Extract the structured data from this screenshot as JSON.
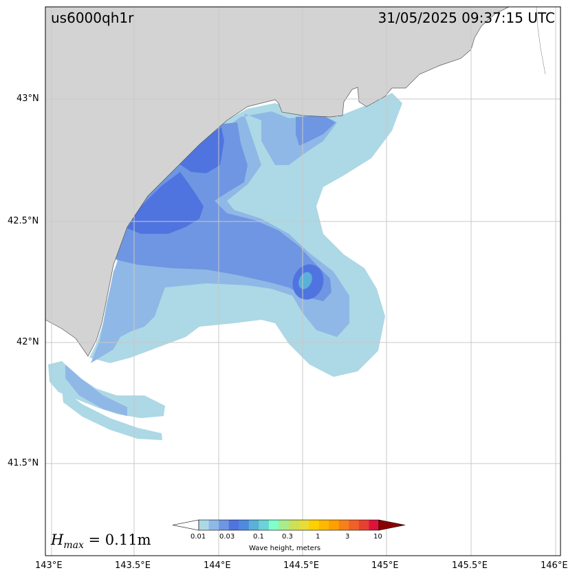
{
  "event_id": "us6000qh1r",
  "timestamp": "31/05/2025 09:37:15 UTC",
  "hmax_label": "H",
  "hmax_sub": "max",
  "hmax_value": " = 0.11m",
  "axes": {
    "x_ticks": [
      "143°E",
      "143.5°E",
      "144°E",
      "144.5°E",
      "145°E",
      "145.5°E",
      "146°E"
    ],
    "y_ticks": [
      "43°N",
      "42.5°N",
      "42°N",
      "41.5°N"
    ]
  },
  "colorbar": {
    "title": "Wave height, meters",
    "tick_labels": [
      "0.01",
      "0.03",
      "0.1",
      "0.3",
      "1",
      "3",
      "10"
    ],
    "colors": [
      "#add8e6",
      "#8fb8e6",
      "#6f96e2",
      "#4f74e0",
      "#4f8ae0",
      "#5ab0d8",
      "#6ad4d8",
      "#80ffc8",
      "#a8ec8c",
      "#cce058",
      "#e8dc38",
      "#ffd000",
      "#ffb800",
      "#ffa000",
      "#f88018",
      "#f06028",
      "#e84030",
      "#dc143c"
    ],
    "under_color": "#ffffff",
    "over_color": "#8b0000"
  },
  "map_colors": {
    "land": "#d3d3d3",
    "ocean": "#ffffff",
    "grid": "#c8c8c8",
    "wave_0": "#add8e6",
    "wave_1": "#8fb8e6",
    "wave_2": "#6f96e2",
    "wave_3": "#4f74e0",
    "wave_peak": "#5ab0d8"
  }
}
